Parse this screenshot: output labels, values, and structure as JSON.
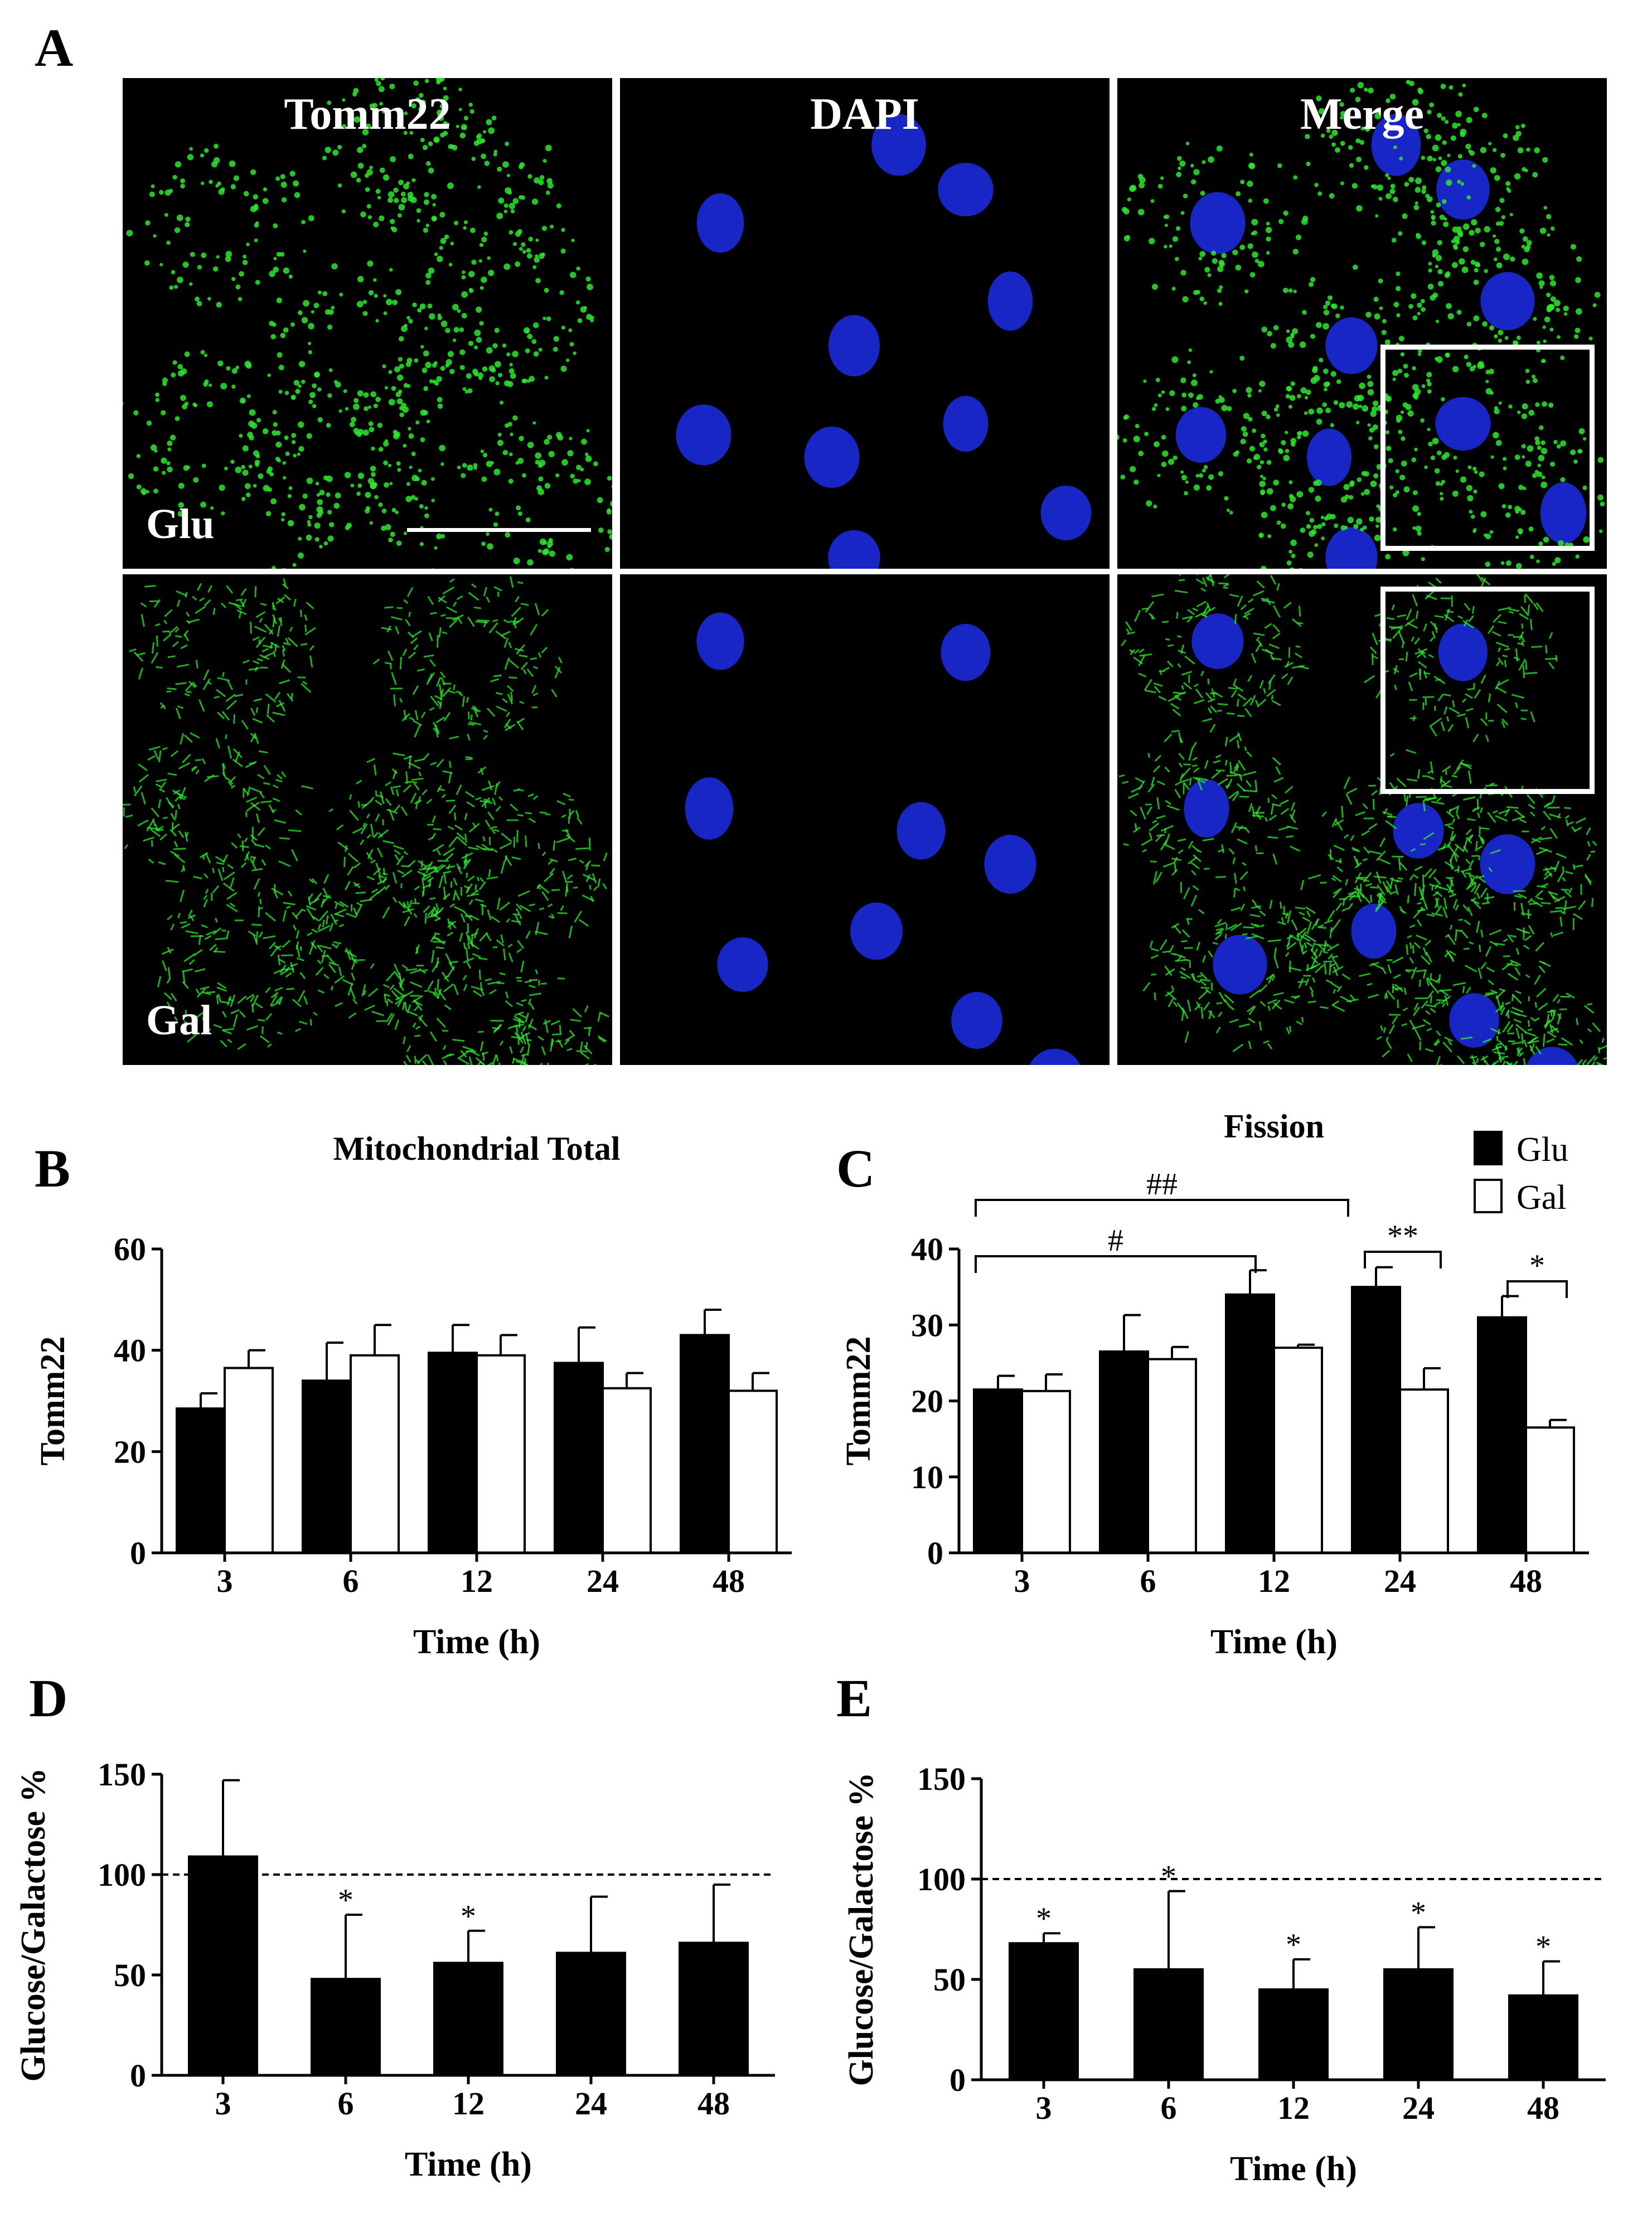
{
  "panels": {
    "A": "A",
    "B": "B",
    "C": "C",
    "D": "D",
    "E": "E"
  },
  "microscopy": {
    "columns": [
      "Tomm22",
      "DAPI",
      "Merge"
    ],
    "rows": [
      "Glu",
      "Gal"
    ],
    "colors": {
      "mito": "#2ee62e",
      "nucleus": "#1c2adb",
      "inset_border": "#ffffff"
    }
  },
  "chart_data": [
    {
      "id": "B",
      "type": "bar",
      "title": "Mitochondrial Total",
      "xlabel": "Time (h)",
      "ylabel": "Tomm22",
      "ylim": [
        0,
        60
      ],
      "yticks": [
        0,
        20,
        40,
        60
      ],
      "categories": [
        "3",
        "6",
        "12",
        "24",
        "48"
      ],
      "series": [
        {
          "name": "Glu",
          "color": "#000000",
          "values": [
            28.5,
            34.0,
            39.5,
            37.5,
            43.0
          ],
          "errors": [
            3.0,
            7.5,
            5.5,
            7.0,
            5.0
          ]
        },
        {
          "name": "Gal",
          "color": "#ffffff",
          "values": [
            36.5,
            39.0,
            39.0,
            32.5,
            32.0
          ],
          "errors": [
            3.5,
            6.0,
            4.0,
            3.0,
            3.5
          ]
        }
      ]
    },
    {
      "id": "C",
      "type": "bar",
      "title": "Fission",
      "xlabel": "Time (h)",
      "ylabel": "Tomm22",
      "ylim": [
        0,
        40
      ],
      "yticks": [
        0,
        10,
        20,
        30,
        40
      ],
      "categories": [
        "3",
        "6",
        "12",
        "24",
        "48"
      ],
      "legend": {
        "position": "top-right",
        "entries": [
          "Glu",
          "Gal"
        ]
      },
      "series": [
        {
          "name": "Glu",
          "color": "#000000",
          "values": [
            21.5,
            26.5,
            34.0,
            35.0,
            31.0
          ],
          "errors": [
            1.8,
            4.8,
            3.2,
            2.6,
            2.8
          ]
        },
        {
          "name": "Gal",
          "color": "#ffffff",
          "values": [
            21.3,
            25.5,
            27.0,
            21.5,
            16.5
          ],
          "errors": [
            2.2,
            1.6,
            0.4,
            2.8,
            1.0
          ]
        }
      ],
      "annotations": [
        "##",
        "#",
        "**",
        "*"
      ]
    },
    {
      "id": "D",
      "type": "bar",
      "xlabel": "Time (h)",
      "ylabel": "Glucose/Galactose %",
      "ylim": [
        0,
        150
      ],
      "yticks": [
        0,
        50,
        100,
        150
      ],
      "reference_line": 100,
      "categories": [
        "3",
        "6",
        "12",
        "24",
        "48"
      ],
      "values": [
        109,
        48,
        56,
        61,
        66
      ],
      "errors": [
        38,
        32,
        16,
        28,
        29
      ],
      "significance": [
        "",
        "*",
        "*",
        "",
        ""
      ]
    },
    {
      "id": "E",
      "type": "bar",
      "xlabel": "Time (h)",
      "ylabel": "Glucose/Galactose %",
      "ylim": [
        0,
        150
      ],
      "yticks": [
        0,
        50,
        100,
        150
      ],
      "reference_line": 100,
      "categories": [
        "3",
        "6",
        "12",
        "24",
        "48"
      ],
      "values": [
        68,
        55,
        45,
        55,
        42
      ],
      "errors": [
        5,
        39,
        15,
        21,
        17
      ],
      "significance": [
        "*",
        "*",
        "*",
        "*",
        "*"
      ]
    }
  ]
}
